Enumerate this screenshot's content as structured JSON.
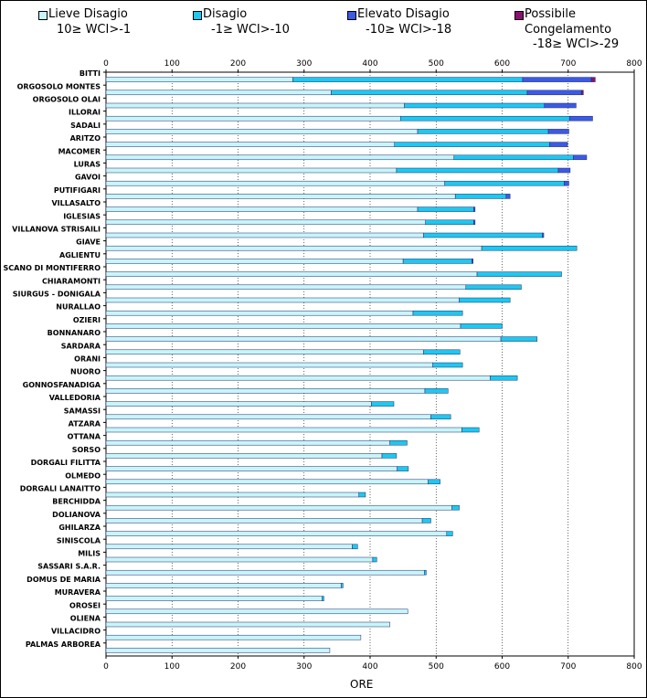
{
  "legend": [
    {
      "label": "Lieve Disagio",
      "range": "10≥ WCI>-1",
      "color": "#c8f5fa"
    },
    {
      "label": "Disagio",
      "range": "-1≥ WCI>-10",
      "color": "#1ec8f0"
    },
    {
      "label": "Elevato Disagio",
      "range": "-10≥ WCI>-18",
      "color": "#3c5ae6"
    },
    {
      "label": "Possibile",
      "range": "Congelamento",
      "range2": "-18≥ WCI>-29",
      "color": "#8c1070"
    }
  ],
  "chart_data": {
    "type": "bar",
    "orientation": "horizontal",
    "stacked": true,
    "title": "",
    "xlabel": "ORE",
    "ylabel": "",
    "xlim": [
      0,
      800
    ],
    "xticks": [
      0,
      100,
      200,
      300,
      400,
      500,
      600,
      700,
      800
    ],
    "categories": [
      "BITTI",
      "ORGOSOLO MONTES",
      "ORGOSOLO OLAI",
      "ILLORAI",
      "SADALI",
      "ARITZO",
      "MACOMER",
      "LURAS",
      "GAVOI",
      "PUTIFIGARI",
      "VILLASALTO",
      "IGLESIAS",
      "VILLANOVA STRISAILI",
      "GIAVE",
      "AGLIENTU",
      "SCANO DI MONTIFERRO",
      "CHIARAMONTI",
      "SIURGUS - DONIGALA",
      "NURALLAO",
      "OZIERI",
      "BONNANARO",
      "SARDARA",
      "ORANI",
      "NUORO",
      "GONNOSFANADIGA",
      "VALLEDORIA",
      "SAMASSI",
      "ATZARA",
      "OTTANA",
      "SORSO",
      "DORGALI FILITTA",
      "OLMEDO",
      "DORGALI LANAITTO",
      "BERCHIDDA",
      "DOLIANOVA",
      "GHILARZA",
      "SINISCOLA",
      "MILIS",
      "SASSARI S.A.R.",
      "DOMUS DE MARIA",
      "MURAVERA",
      "OROSEI",
      "OLIENA",
      "VILLACIDRO",
      "PALMAS ARBOREA"
    ],
    "series": [
      {
        "name": "Lieve Disagio",
        "values": [
          283,
          341,
          452,
          446,
          472,
          437,
          527,
          440,
          513,
          529,
          472,
          484,
          481,
          569,
          450,
          562,
          545,
          535,
          465,
          537,
          598,
          481,
          495,
          582,
          483,
          402,
          492,
          539,
          430,
          418,
          441,
          488,
          383,
          524,
          479,
          516,
          373,
          404,
          482,
          356,
          327,
          457,
          430,
          386,
          339
        ]
      },
      {
        "name": "Disagio",
        "values": [
          348,
          297,
          212,
          256,
          198,
          235,
          181,
          245,
          181,
          77,
          85,
          73,
          180,
          144,
          104,
          128,
          84,
          77,
          75,
          63,
          55,
          55,
          45,
          41,
          35,
          34,
          30,
          26,
          26,
          22,
          17,
          18,
          10,
          11,
          13,
          9,
          8,
          6,
          3,
          3,
          3,
          0,
          0,
          0,
          0
        ]
      },
      {
        "name": "Elevato Disagio",
        "values": [
          104,
          82,
          48,
          35,
          31,
          27,
          20,
          18,
          7,
          6,
          2,
          2,
          2,
          0,
          2,
          0,
          0,
          0,
          0,
          0,
          0,
          0,
          0,
          0,
          0,
          0,
          0,
          0,
          0,
          0,
          0,
          0,
          0,
          0,
          0,
          0,
          0,
          0,
          0,
          0,
          0,
          0,
          0,
          0,
          0
        ]
      },
      {
        "name": "Possibile Congelamento",
        "values": [
          6,
          3,
          0,
          0,
          0,
          0,
          0,
          0,
          0,
          0,
          0,
          0,
          0,
          0,
          0,
          0,
          0,
          0,
          0,
          0,
          0,
          0,
          0,
          0,
          0,
          0,
          0,
          0,
          0,
          0,
          0,
          0,
          0,
          0,
          0,
          0,
          0,
          0,
          0,
          0,
          0,
          0,
          0,
          0,
          0
        ]
      }
    ]
  }
}
